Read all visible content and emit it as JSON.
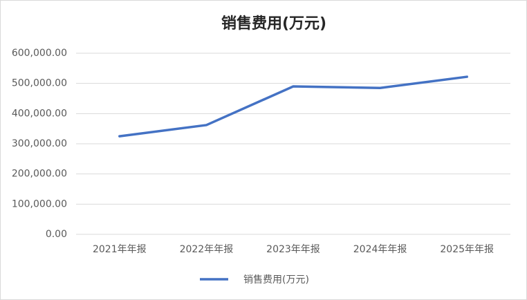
{
  "chart_data": {
    "type": "line",
    "title": "销售费用(万元)",
    "categories": [
      "2021年年报",
      "2022年年报",
      "2023年年报",
      "2024年年报",
      "2025年年报"
    ],
    "series": [
      {
        "name": "销售费用(万元)",
        "color": "#4472c4",
        "values": [
          325000,
          362000,
          490000,
          485000,
          522000
        ]
      }
    ],
    "ylim": [
      0,
      600000
    ],
    "yticks": [
      {
        "value": 0,
        "label": "0.00"
      },
      {
        "value": 100000,
        "label": "100,000.00"
      },
      {
        "value": 200000,
        "label": "200,000.00"
      },
      {
        "value": 300000,
        "label": "300,000.00"
      },
      {
        "value": 400000,
        "label": "400,000.00"
      },
      {
        "value": 500000,
        "label": "500,000.00"
      },
      {
        "value": 600000,
        "label": "600,000.00"
      }
    ],
    "grid": true,
    "legend": "bottom"
  }
}
